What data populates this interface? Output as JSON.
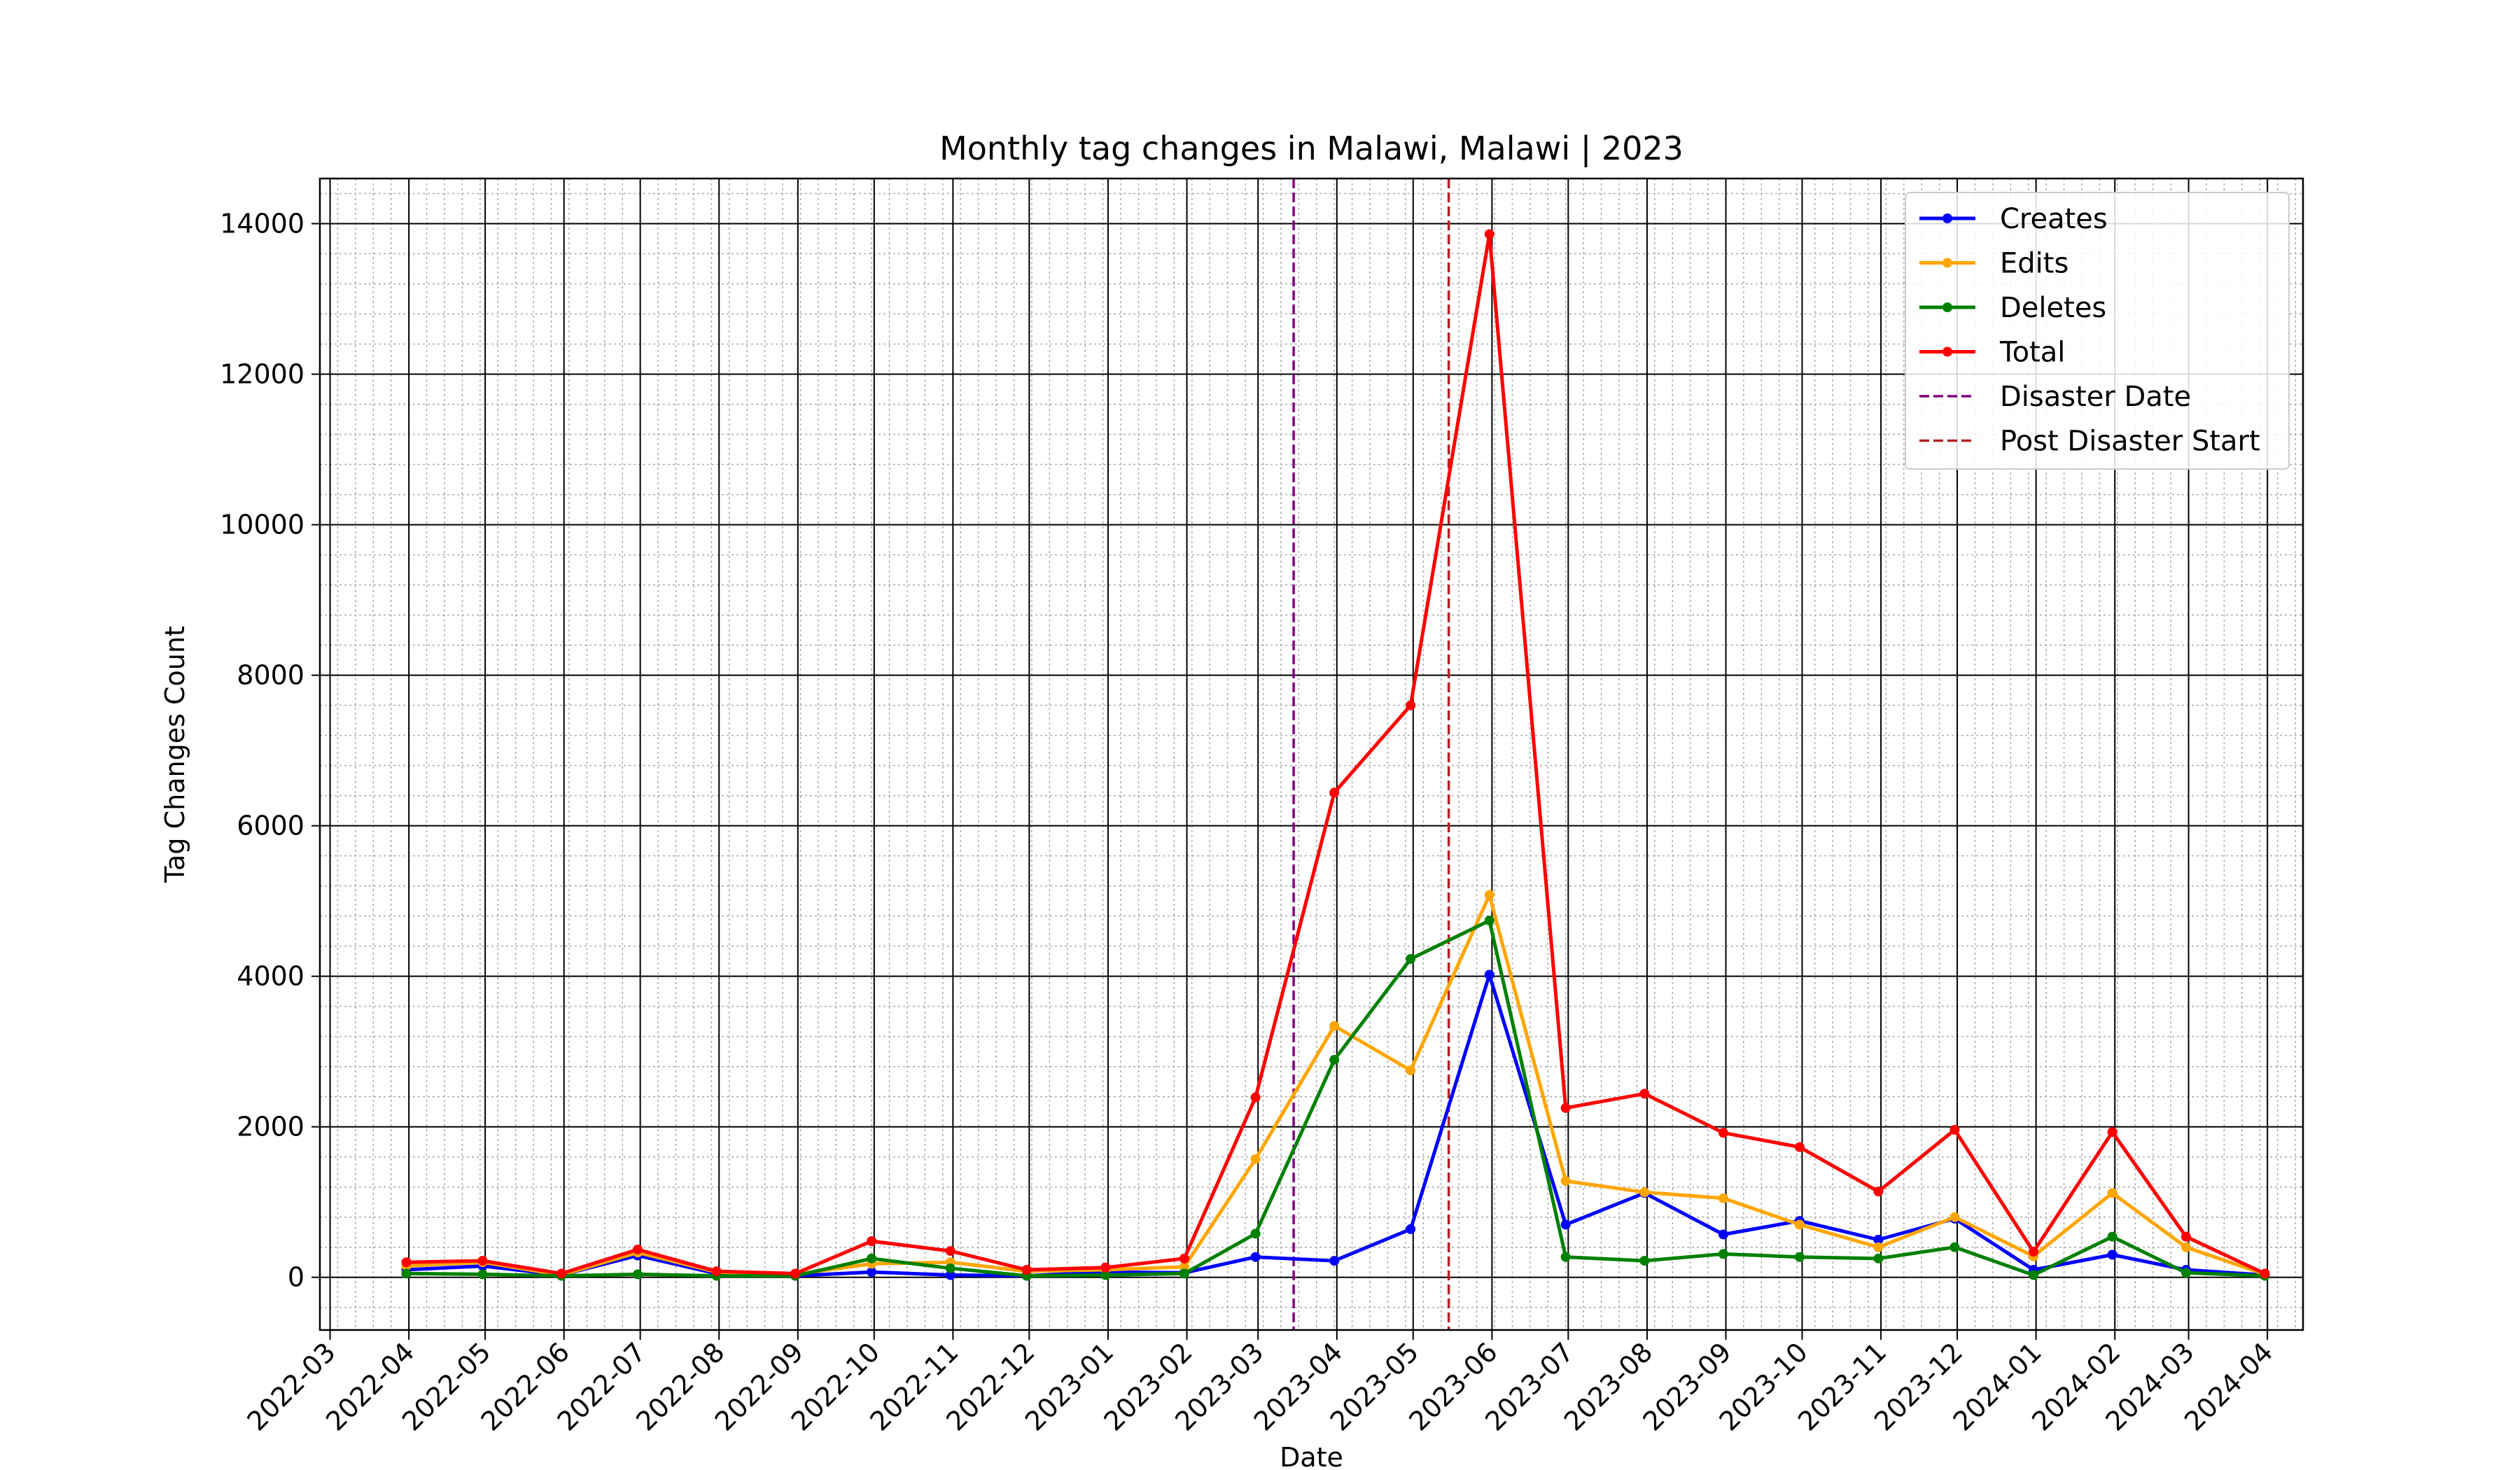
{
  "chart_data": {
    "type": "line",
    "title": "Monthly tag changes in Malawi, Malawi | 2023",
    "xlabel": "Date",
    "ylabel": "Tag Changes Count",
    "ylim": [
      -700,
      14600
    ],
    "yticks": [
      0,
      2000,
      4000,
      6000,
      8000,
      10000,
      12000,
      14000
    ],
    "xlim": [
      "2022-02-25",
      "2024-04-15"
    ],
    "xticks": [
      "2022-03",
      "2022-04",
      "2022-05",
      "2022-06",
      "2022-07",
      "2022-08",
      "2022-09",
      "2022-10",
      "2022-11",
      "2022-12",
      "2023-01",
      "2023-02",
      "2023-03",
      "2023-04",
      "2023-05",
      "2023-06",
      "2023-07",
      "2023-08",
      "2023-09",
      "2023-10",
      "2023-11",
      "2023-12",
      "2024-01",
      "2024-02",
      "2024-03",
      "2024-04"
    ],
    "grid": true,
    "legend_position": "top-right",
    "x": [
      "2022-03-31",
      "2022-04-30",
      "2022-05-31",
      "2022-06-30",
      "2022-07-31",
      "2022-08-31",
      "2022-09-30",
      "2022-10-31",
      "2022-11-30",
      "2022-12-31",
      "2023-01-31",
      "2023-02-28",
      "2023-03-31",
      "2023-04-30",
      "2023-05-31",
      "2023-06-30",
      "2023-07-31",
      "2023-08-31",
      "2023-09-30",
      "2023-10-31",
      "2023-11-30",
      "2023-12-31",
      "2024-01-31",
      "2024-02-29",
      "2024-03-31"
    ],
    "series": [
      {
        "name": "Creates",
        "color": "#0000ff",
        "values": [
          100,
          150,
          30,
          290,
          50,
          20,
          70,
          30,
          20,
          70,
          60,
          270,
          220,
          640,
          4020,
          700,
          1120,
          570,
          750,
          500,
          780,
          100,
          300,
          100,
          30
        ]
      },
      {
        "name": "Edits",
        "color": "#ffa500",
        "values": [
          150,
          200,
          30,
          330,
          70,
          40,
          180,
          200,
          80,
          100,
          140,
          1570,
          3340,
          2750,
          5080,
          1280,
          1130,
          1050,
          700,
          400,
          800,
          280,
          1120,
          400,
          40
        ]
      },
      {
        "name": "Deletes",
        "color": "#008000",
        "values": [
          50,
          40,
          20,
          40,
          20,
          20,
          250,
          120,
          20,
          30,
          50,
          580,
          2890,
          4230,
          4740,
          270,
          220,
          310,
          270,
          250,
          400,
          30,
          540,
          60,
          20
        ]
      },
      {
        "name": "Total",
        "color": "#ff0000",
        "values": [
          200,
          220,
          50,
          370,
          80,
          50,
          480,
          350,
          100,
          130,
          250,
          2390,
          6440,
          7600,
          13860,
          2250,
          2440,
          1920,
          1730,
          1140,
          1960,
          340,
          1930,
          540,
          50
        ]
      }
    ],
    "vlines": [
      {
        "name": "Disaster Date",
        "date": "2023-03-15",
        "color": "#800080"
      },
      {
        "name": "Post Disaster Start",
        "date": "2023-05-15",
        "color": "#b22222"
      }
    ]
  }
}
